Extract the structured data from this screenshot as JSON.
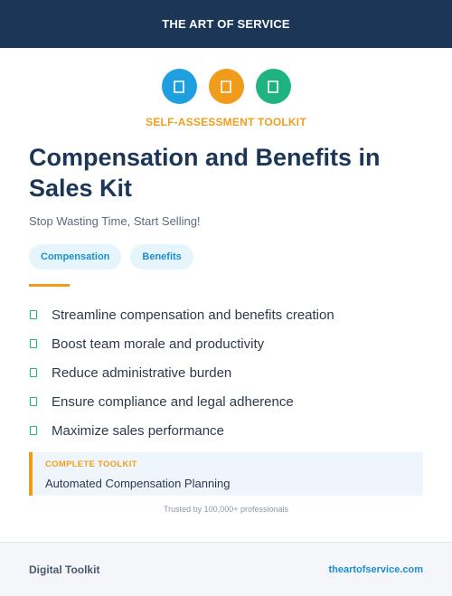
{
  "header": {
    "brand": "THE ART OF SERVICE"
  },
  "icons": [
    {
      "name": "document-icon",
      "color": "#1f9fe0"
    },
    {
      "name": "document-icon",
      "color": "#f09b1a"
    },
    {
      "name": "document-icon",
      "color": "#20b382"
    }
  ],
  "eyebrow": "SELF-ASSESSMENT TOOLKIT",
  "title": "Compensation and Benefits in Sales Kit",
  "subtitle": "Stop Wasting Time, Start Selling!",
  "tags": [
    "Compensation",
    "Benefits"
  ],
  "features": [
    "Streamline compensation and benefits creation",
    "Boost team morale and productivity",
    "Reduce administrative burden",
    "Ensure compliance and legal adherence",
    "Maximize sales performance"
  ],
  "callout": {
    "label": "COMPLETE TOOLKIT",
    "value": "Automated Compensation Planning"
  },
  "trusted": "Trusted by 100,000+ professionals",
  "footer": {
    "left": "Digital Toolkit",
    "right": "theartofservice.com"
  },
  "colors": {
    "navy": "#1c3657",
    "orange": "#f09b1a",
    "blue": "#1f9fe0",
    "green": "#20b382"
  }
}
